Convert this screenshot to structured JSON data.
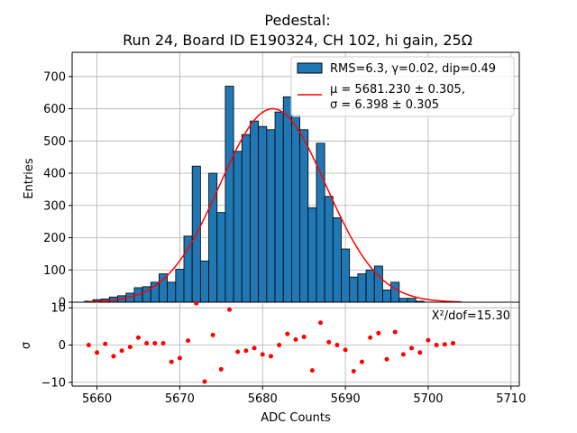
{
  "chart_data": [
    {
      "type": "bar",
      "title_line1": "Pedestal:",
      "title_line2": "Run 24, Board ID E190324, CH 102, hi gain, 25Ω",
      "ylabel": "Entries",
      "xlim": [
        5657,
        5711
      ],
      "ylim": [
        0,
        775
      ],
      "yticks": [
        0,
        100,
        200,
        300,
        400,
        500,
        600,
        700
      ],
      "grid": true,
      "legend_placement": "top-right",
      "bin_width": 1,
      "bins": [
        {
          "x": 5659,
          "y": 3
        },
        {
          "x": 5660,
          "y": 8
        },
        {
          "x": 5661,
          "y": 10
        },
        {
          "x": 5662,
          "y": 16
        },
        {
          "x": 5663,
          "y": 20
        },
        {
          "x": 5664,
          "y": 28
        },
        {
          "x": 5665,
          "y": 45
        },
        {
          "x": 5666,
          "y": 48
        },
        {
          "x": 5667,
          "y": 62
        },
        {
          "x": 5668,
          "y": 88
        },
        {
          "x": 5669,
          "y": 62
        },
        {
          "x": 5670,
          "y": 102
        },
        {
          "x": 5671,
          "y": 205
        },
        {
          "x": 5672,
          "y": 422
        },
        {
          "x": 5673,
          "y": 128
        },
        {
          "x": 5674,
          "y": 400
        },
        {
          "x": 5675,
          "y": 278
        },
        {
          "x": 5676,
          "y": 670
        },
        {
          "x": 5677,
          "y": 468
        },
        {
          "x": 5678,
          "y": 520
        },
        {
          "x": 5679,
          "y": 562
        },
        {
          "x": 5680,
          "y": 545
        },
        {
          "x": 5681,
          "y": 535
        },
        {
          "x": 5682,
          "y": 590
        },
        {
          "x": 5683,
          "y": 637
        },
        {
          "x": 5684,
          "y": 580
        },
        {
          "x": 5685,
          "y": 535
        },
        {
          "x": 5686,
          "y": 293
        },
        {
          "x": 5687,
          "y": 493
        },
        {
          "x": 5688,
          "y": 328
        },
        {
          "x": 5689,
          "y": 262
        },
        {
          "x": 5690,
          "y": 165
        },
        {
          "x": 5691,
          "y": 78
        },
        {
          "x": 5692,
          "y": 88
        },
        {
          "x": 5693,
          "y": 100
        },
        {
          "x": 5694,
          "y": 112
        },
        {
          "x": 5695,
          "y": 38
        },
        {
          "x": 5696,
          "y": 62
        },
        {
          "x": 5697,
          "y": 12
        },
        {
          "x": 5698,
          "y": 12
        },
        {
          "x": 5699,
          "y": 3
        }
      ],
      "fit": {
        "type": "gaussian",
        "mu": 5681.23,
        "sigma": 6.398,
        "amplitude": 600,
        "x_range": [
          5659,
          5704
        ],
        "color": "#ff0000"
      },
      "legend": {
        "hist_label": "RMS=6.3, γ=0.02, dip=0.49",
        "fit_label_line1": "μ = 5681.230 ± 0.305,",
        "fit_label_line2": "σ = 6.398 ± 0.305"
      },
      "bar_color": "#1f77b4"
    },
    {
      "type": "scatter",
      "xlabel": "ADC Counts",
      "ylabel": "σ",
      "xlim": [
        5657,
        5711
      ],
      "ylim": [
        -11,
        11.5
      ],
      "yticks": [
        -10,
        0,
        10
      ],
      "xticks": [
        5660,
        5670,
        5680,
        5690,
        5700,
        5710
      ],
      "grid": true,
      "annotation": "Χ²/dof=15.30",
      "point_color": "#ff0000",
      "points": [
        {
          "x": 5659,
          "y": 0
        },
        {
          "x": 5660,
          "y": -2
        },
        {
          "x": 5661,
          "y": 0.3
        },
        {
          "x": 5662,
          "y": -3
        },
        {
          "x": 5663,
          "y": -1.5
        },
        {
          "x": 5664,
          "y": -0.5
        },
        {
          "x": 5665,
          "y": 2
        },
        {
          "x": 5666,
          "y": 0.5
        },
        {
          "x": 5667,
          "y": 0.5
        },
        {
          "x": 5668,
          "y": 0.5
        },
        {
          "x": 5669,
          "y": -4.5
        },
        {
          "x": 5670,
          "y": -3.5
        },
        {
          "x": 5671,
          "y": 1.2
        },
        {
          "x": 5672,
          "y": 11.2
        },
        {
          "x": 5673,
          "y": -9.8
        },
        {
          "x": 5674,
          "y": 2.7
        },
        {
          "x": 5675,
          "y": -6.5
        },
        {
          "x": 5676,
          "y": 9.5
        },
        {
          "x": 5677,
          "y": -1.8
        },
        {
          "x": 5678,
          "y": -1.5
        },
        {
          "x": 5679,
          "y": -0.8
        },
        {
          "x": 5680,
          "y": -2.5
        },
        {
          "x": 5681,
          "y": -3
        },
        {
          "x": 5682,
          "y": 0
        },
        {
          "x": 5683,
          "y": 3
        },
        {
          "x": 5684,
          "y": 1.5
        },
        {
          "x": 5685,
          "y": 2.2
        },
        {
          "x": 5686,
          "y": -6.8
        },
        {
          "x": 5687,
          "y": 6
        },
        {
          "x": 5688,
          "y": 0.8
        },
        {
          "x": 5689,
          "y": 0
        },
        {
          "x": 5690,
          "y": -1.3
        },
        {
          "x": 5691,
          "y": -7
        },
        {
          "x": 5692,
          "y": -4.5
        },
        {
          "x": 5693,
          "y": 2
        },
        {
          "x": 5694,
          "y": 3.2
        },
        {
          "x": 5695,
          "y": -3.8
        },
        {
          "x": 5696,
          "y": 3.5
        },
        {
          "x": 5697,
          "y": -2.5
        },
        {
          "x": 5698,
          "y": -0.8
        },
        {
          "x": 5699,
          "y": -2
        },
        {
          "x": 5700,
          "y": 1.3
        },
        {
          "x": 5701,
          "y": 0
        },
        {
          "x": 5702,
          "y": 0.2
        },
        {
          "x": 5703,
          "y": 0.5
        }
      ]
    }
  ]
}
